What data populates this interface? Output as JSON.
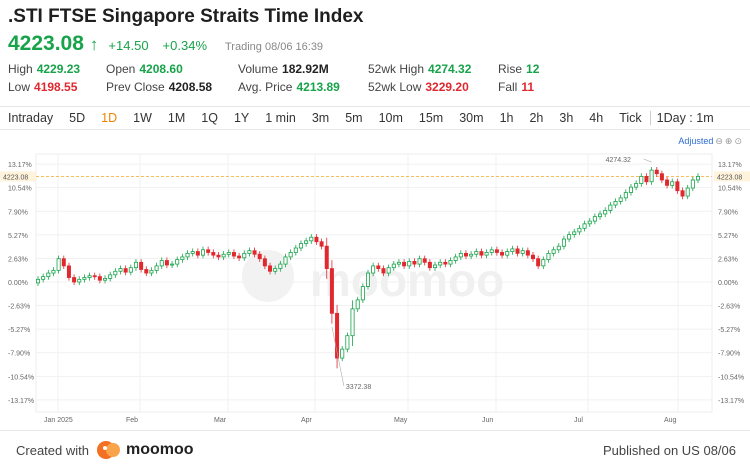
{
  "header": {
    "title": ".STI FTSE Singapore Straits Time Index",
    "price": "4223.08",
    "change": "+14.50",
    "change_pct": "+0.34%",
    "status": "Trading 08/06 16:39"
  },
  "stats": {
    "high_label": "High",
    "high": "4229.23",
    "low_label": "Low",
    "low": "4198.55",
    "open_label": "Open",
    "open": "4208.60",
    "prev_close_label": "Prev Close",
    "prev_close": "4208.58",
    "volume_label": "Volume",
    "volume": "182.92M",
    "avg_price_label": "Avg. Price",
    "avg_price": "4213.89",
    "wk52_high_label": "52wk High",
    "wk52_high": "4274.32",
    "wk52_low_label": "52wk Low",
    "wk52_low": "3229.20",
    "rise_label": "Rise",
    "rise": "12",
    "fall_label": "Fall",
    "fall": "11"
  },
  "tabs": [
    "Intraday",
    "5D",
    "1D",
    "1W",
    "1M",
    "1Q",
    "1Y",
    "1 min",
    "3m",
    "5m",
    "10m",
    "15m",
    "30m",
    "1h",
    "2h",
    "3h",
    "4h",
    "Tick",
    "1Day : 1m"
  ],
  "active_tab": "1D",
  "adjust_label": "Adjusted",
  "chart_data": {
    "type": "candlestick",
    "y_pct_ticks": [
      "13.17%",
      "10.54%",
      "7.90%",
      "5.27%",
      "2.63%",
      "0.00%",
      "-2.63%",
      "-5.27%",
      "-7.90%",
      "-10.54%",
      "-13.17%"
    ],
    "x_ticks": [
      "Jan 2025",
      "Feb",
      "Mar",
      "Apr",
      "May",
      "Jun",
      "Jul",
      "Aug"
    ],
    "current_label": "4223.08",
    "high_annotation": "4274.32",
    "low_annotation": "3372.38",
    "close_pct": [
      0.3,
      0.6,
      1.0,
      1.3,
      2.6,
      1.8,
      0.5,
      0.0,
      0.3,
      0.5,
      0.7,
      0.6,
      0.2,
      0.4,
      0.8,
      1.2,
      1.5,
      1.1,
      1.6,
      2.2,
      1.4,
      1.0,
      1.3,
      1.8,
      2.4,
      1.9,
      2.0,
      2.5,
      2.8,
      3.2,
      3.4,
      3.0,
      3.6,
      3.3,
      3.0,
      2.8,
      3.1,
      3.3,
      2.9,
      2.7,
      3.2,
      3.5,
      3.1,
      2.6,
      1.8,
      1.2,
      1.5,
      2.0,
      2.8,
      3.3,
      3.8,
      4.3,
      4.6,
      5.0,
      4.5,
      4.0,
      1.5,
      -3.5,
      -8.5,
      -7.5,
      -6.0,
      -3.0,
      -2.0,
      -0.5,
      1.0,
      1.8,
      1.5,
      1.0,
      1.6,
      2.0,
      2.2,
      1.8,
      2.3,
      2.0,
      2.6,
      2.2,
      1.6,
      1.9,
      2.2,
      2.0,
      2.4,
      2.8,
      3.2,
      2.9,
      3.1,
      3.4,
      3.0,
      3.3,
      3.6,
      3.3,
      3.0,
      3.4,
      3.7,
      3.2,
      3.5,
      3.0,
      2.6,
      1.8,
      2.5,
      3.2,
      3.6,
      4.0,
      4.8,
      5.3,
      5.6,
      6.0,
      6.5,
      6.8,
      7.3,
      7.6,
      8.0,
      8.6,
      9.0,
      9.4,
      10.0,
      10.6,
      11.0,
      11.8,
      11.2,
      12.5,
      12.1,
      11.4,
      10.8,
      11.2,
      10.2,
      9.6,
      10.5,
      11.4,
      11.8
    ],
    "annotations_marker_idx": {
      "high": 119,
      "low": 57
    },
    "bullish": "#17a34a",
    "bearish": "#e0282e"
  },
  "footer": {
    "created_with": "Created with",
    "brand": "moomoo",
    "published": "Published on US 08/06"
  },
  "watermark": "moomoo"
}
